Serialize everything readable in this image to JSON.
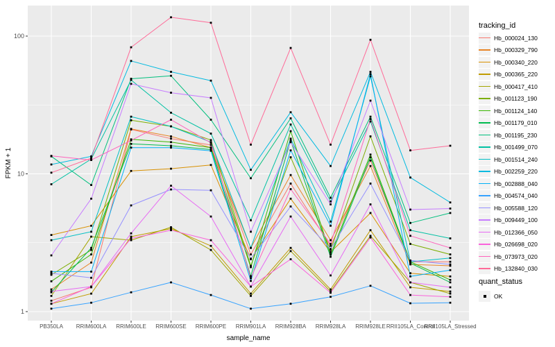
{
  "chart_data": {
    "type": "line",
    "xlabel": "sample_name",
    "ylabel": "FPKM + 1",
    "y_scale": "log10",
    "y_ticks": [
      1,
      10,
      100
    ],
    "y_tick_labels": [
      "1",
      "10",
      "100"
    ],
    "y_minor_ticks": [
      3.162,
      31.62
    ],
    "ylim_log": [
      0.86,
      167
    ],
    "grid": true,
    "legend_position": "right",
    "legend_title": "tracking_id",
    "panel_bg": "#EBEBEB",
    "grid_color": "#FFFFFF",
    "axis_text_color": "#4D4D4D",
    "tick_color": "#333333",
    "point_color": "#000000",
    "categories": [
      "PB350LA",
      "RRIM600LA",
      "RRIM600LE",
      "RRIM600SE",
      "RRIM600PE",
      "RRIM901LA",
      "RRIM928BA",
      "RRIM928LA",
      "RRIM928LE",
      "RRII105LA_Control",
      "RRII105LA_Stressed"
    ],
    "series": [
      {
        "name": "Hb_000024_130",
        "color": "#F8766D",
        "values": [
          1.2,
          1.5,
          21.0,
          18.0,
          16.2,
          2.6,
          8.5,
          3.0,
          12.5,
          2.3,
          2.3
        ]
      },
      {
        "name": "Hb_000329_790",
        "color": "#E88526",
        "values": [
          1.45,
          2.27,
          21.2,
          18.7,
          15.5,
          2.9,
          9.8,
          3.3,
          11.4,
          2.2,
          2.15
        ]
      },
      {
        "name": "Hb_000340_220",
        "color": "#D89000",
        "values": [
          3.6,
          4.2,
          10.5,
          10.9,
          11.6,
          2.4,
          6.6,
          2.7,
          5.2,
          1.9,
          1.8
        ]
      },
      {
        "name": "Hb_000365_220",
        "color": "#C09B00",
        "values": [
          1.14,
          1.35,
          3.5,
          4.0,
          3.0,
          1.35,
          2.9,
          1.45,
          3.9,
          1.5,
          1.4
        ]
      },
      {
        "name": "Hb_000417_410",
        "color": "#A3A500",
        "values": [
          1.3,
          3.5,
          3.3,
          4.1,
          2.8,
          1.3,
          2.75,
          1.4,
          3.55,
          1.63,
          1.35
        ]
      },
      {
        "name": "Hb_001123_190",
        "color": "#7CAE00",
        "values": [
          1.85,
          2.8,
          24.5,
          22.1,
          17.6,
          2.15,
          13.2,
          2.8,
          18.7,
          3.1,
          2.6
        ]
      },
      {
        "name": "Hb_001124_140",
        "color": "#39B600",
        "values": [
          1.66,
          2.6,
          17.8,
          17.0,
          15.5,
          2.1,
          20.4,
          2.6,
          13.8,
          2.3,
          1.7
        ]
      },
      {
        "name": "Hb_001179_010",
        "color": "#00BB4E",
        "values": [
          1.38,
          2.9,
          16.5,
          16.0,
          15.0,
          1.81,
          17.5,
          2.5,
          13.2,
          2.25,
          1.63
        ]
      },
      {
        "name": "Hb_001195_230",
        "color": "#00BF7D",
        "values": [
          13.4,
          8.3,
          49.0,
          51.5,
          24.7,
          9.3,
          25.3,
          6.7,
          26.0,
          4.4,
          5.2
        ]
      },
      {
        "name": "Hb_001499_070",
        "color": "#00C1A3",
        "values": [
          8.4,
          12.8,
          48.0,
          27.8,
          19.6,
          4.6,
          22.8,
          6.3,
          24.0,
          3.9,
          3.4
        ]
      },
      {
        "name": "Hb_001514_240",
        "color": "#00BFC4",
        "values": [
          3.3,
          3.8,
          26.0,
          22.1,
          17.0,
          2.9,
          18.0,
          4.5,
          51.0,
          2.3,
          2.45
        ]
      },
      {
        "name": "Hb_002259_220",
        "color": "#00BAE0",
        "values": [
          11.7,
          13.4,
          66.0,
          55.0,
          47.5,
          10.7,
          28.0,
          11.4,
          55.0,
          9.4,
          6.2
        ]
      },
      {
        "name": "Hb_002888_040",
        "color": "#00B0F6",
        "values": [
          1.95,
          1.95,
          15.5,
          15.5,
          14.7,
          1.67,
          14.8,
          4.2,
          53.0,
          1.8,
          2.0
        ]
      },
      {
        "name": "Hb_004574_040",
        "color": "#35A2FF",
        "values": [
          1.05,
          1.16,
          1.38,
          1.63,
          1.32,
          1.05,
          1.14,
          1.28,
          1.54,
          1.15,
          1.16
        ]
      },
      {
        "name": "Hb_005588_120",
        "color": "#9590FF",
        "values": [
          1.9,
          1.76,
          5.9,
          7.7,
          7.6,
          2.42,
          5.8,
          2.85,
          8.5,
          2.35,
          2.2
        ]
      },
      {
        "name": "Hb_009449_100",
        "color": "#C77CFF",
        "values": [
          2.56,
          6.6,
          45.0,
          38.8,
          35.6,
          3.8,
          17.0,
          6.0,
          34.0,
          5.5,
          5.6
        ]
      },
      {
        "name": "Hb_012366_050",
        "color": "#E76BF3",
        "values": [
          1.4,
          1.52,
          3.7,
          8.2,
          4.9,
          1.52,
          4.9,
          1.83,
          6.0,
          1.63,
          1.5
        ]
      },
      {
        "name": "Hb_026698_020",
        "color": "#FA62DB",
        "values": [
          1.14,
          1.52,
          3.4,
          3.9,
          3.3,
          1.52,
          2.4,
          1.37,
          3.45,
          1.32,
          1.28
        ]
      },
      {
        "name": "Hb_073973_020",
        "color": "#FF62BC",
        "values": [
          13.5,
          12.6,
          17.5,
          24.7,
          16.8,
          1.75,
          7.75,
          3.1,
          25.0,
          3.55,
          2.9
        ]
      },
      {
        "name": "Hb_132840_030",
        "color": "#FF6A98",
        "values": [
          10.2,
          13.0,
          83.0,
          137.0,
          125.0,
          16.3,
          82.0,
          16.3,
          94.0,
          14.8,
          16.0
        ]
      }
    ],
    "quant_legend": {
      "title": "quant_status",
      "items": [
        {
          "label": "OK",
          "marker": "filled-square"
        }
      ]
    }
  }
}
